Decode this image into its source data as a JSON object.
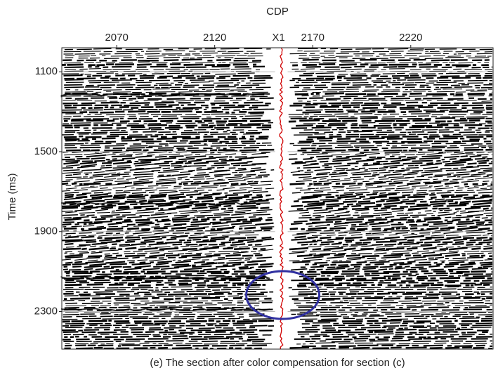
{
  "chart_data": {
    "type": "seismic-section",
    "xlabel": "CDP",
    "ylabel": "Time (ms)",
    "caption": "(e) The section after color compensation for section (c)",
    "xlim": [
      2042,
      2262
    ],
    "xticks": [
      2070,
      2120,
      2170,
      2220
    ],
    "ylim": [
      980,
      2488
    ],
    "yticks": [
      1100,
      1500,
      1900,
      2300
    ],
    "y_inverted": true,
    "grid": true,
    "marker": {
      "label": "X1",
      "x": 2154,
      "color": "#d00000"
    },
    "highlight_color": "#3030a0"
  }
}
